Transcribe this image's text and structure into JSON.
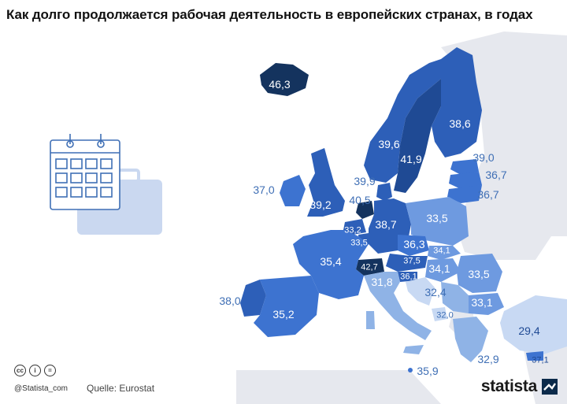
{
  "title": "Как долго продолжается рабочая деятельность в европейских странах, в годах",
  "footer": {
    "credit": "@Statista_com",
    "source": "Quelle: Eurostat",
    "brand": "statista",
    "license_icons": [
      "cc-icon",
      "attribution-icon",
      "no-derivatives-icon"
    ]
  },
  "colors": {
    "land_other": "#e6e8ee",
    "sea": "#ffffff",
    "shade_1": "#c8d9f3",
    "shade_2": "#8fb3e6",
    "shade_3": "#6e9ae0",
    "shade_4": "#3d73d0",
    "shade_5": "#2d5fb8",
    "shade_6": "#1f4a94",
    "shade_7": "#14335e",
    "label_on_light": "#3f6fb5",
    "label_on_dark": "#ffffff"
  },
  "decoration": {
    "icon": "calendar-icon",
    "icon2": "briefcase-icon"
  },
  "labels": [
    {
      "value": "46,3",
      "region": "iceland"
    },
    {
      "value": "38,6",
      "region": "finland"
    },
    {
      "value": "39,6",
      "region": "norway"
    },
    {
      "value": "41,9",
      "region": "sweden"
    },
    {
      "value": "39,0",
      "region": "estonia"
    },
    {
      "value": "36,7",
      "region": "latvia"
    },
    {
      "value": "36,7",
      "region": "lithuania"
    },
    {
      "value": "37,0",
      "region": "ireland"
    },
    {
      "value": "39,2",
      "region": "united-kingdom"
    },
    {
      "value": "39,9",
      "region": "denmark"
    },
    {
      "value": "40,5",
      "region": "netherlands"
    },
    {
      "value": "33,2",
      "region": "belgium"
    },
    {
      "value": "33,5",
      "region": "luxembourg"
    },
    {
      "value": "38,7",
      "region": "germany"
    },
    {
      "value": "33,5",
      "region": "poland"
    },
    {
      "value": "36,3",
      "region": "czechia"
    },
    {
      "value": "34,1",
      "region": "slovakia"
    },
    {
      "value": "37,5",
      "region": "austria"
    },
    {
      "value": "34,1",
      "region": "hungary"
    },
    {
      "value": "42,7",
      "region": "switzerland"
    },
    {
      "value": "36,1",
      "region": "slovenia"
    },
    {
      "value": "35,4",
      "region": "france"
    },
    {
      "value": "31,8",
      "region": "italy"
    },
    {
      "value": "32,4",
      "region": "croatia"
    },
    {
      "value": "33,5",
      "region": "romania"
    },
    {
      "value": "33,1",
      "region": "bulgaria"
    },
    {
      "value": "32,0",
      "region": "montenegro"
    },
    {
      "value": "38,0",
      "region": "portugal"
    },
    {
      "value": "35,2",
      "region": "spain"
    },
    {
      "value": "29,4",
      "region": "turkey"
    },
    {
      "value": "32,9",
      "region": "greece"
    },
    {
      "value": "37,1",
      "region": "cyprus"
    },
    {
      "value": "35,9",
      "region": "malta"
    }
  ]
}
